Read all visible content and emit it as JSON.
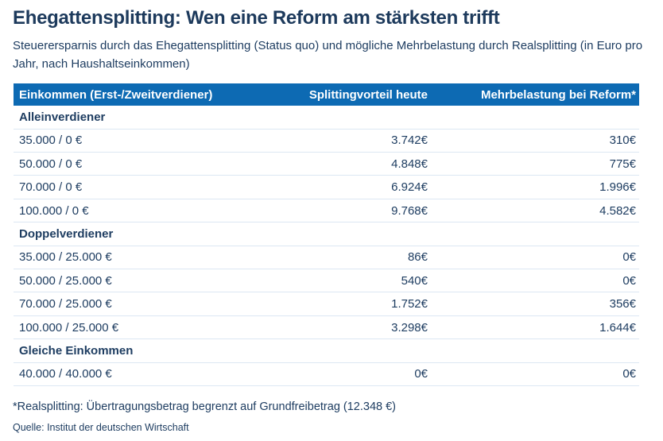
{
  "colors": {
    "accent_blue": "#0d6ab3",
    "navy_text": "#1e3d61",
    "title_navy": "#1d3a5c",
    "row_divider": "#dce7f3",
    "header_text": "#ffffff",
    "background": "#ffffff"
  },
  "header": {
    "title": "Ehegattensplitting: Wen eine Reform am stärksten trifft",
    "subtitle": "Steuerersparnis durch das Ehegattensplitting (Status quo) und mögliche Mehrbelastung durch Realsplitting (in Euro pro Jahr, nach Haushaltseinkommen)"
  },
  "table": {
    "columns": [
      "Einkommen (Erst-/Zweitverdiener)",
      "Splittingvorteil heute",
      "Mehrbelastung bei Reform*"
    ],
    "sections": [
      {
        "name": "Alleinverdiener",
        "rows": [
          {
            "income": "35.000 / 0 €",
            "advantage": "3.742€",
            "burden": "310€"
          },
          {
            "income": "50.000 / 0 €",
            "advantage": "4.848€",
            "burden": "775€"
          },
          {
            "income": "70.000 / 0 €",
            "advantage": "6.924€",
            "burden": "1.996€"
          },
          {
            "income": "100.000 / 0 €",
            "advantage": "9.768€",
            "burden": "4.582€"
          }
        ]
      },
      {
        "name": "Doppelverdiener",
        "rows": [
          {
            "income": "35.000 / 25.000 €",
            "advantage": "86€",
            "burden": "0€"
          },
          {
            "income": "50.000 / 25.000 €",
            "advantage": "540€",
            "burden": "0€"
          },
          {
            "income": "70.000 / 25.000 €",
            "advantage": "1.752€",
            "burden": "356€"
          },
          {
            "income": "100.000 / 25.000 €",
            "advantage": "3.298€",
            "burden": "1.644€"
          }
        ]
      },
      {
        "name": "Gleiche Einkommen",
        "rows": [
          {
            "income": "40.000 / 40.000 €",
            "advantage": "0€",
            "burden": "0€"
          }
        ]
      }
    ]
  },
  "footnote": "*Realsplitting: Übertragungsbetrag begrenzt auf Grundfreibetrag (12.348 €)",
  "source": "Quelle: Institut der deutschen Wirtschaft",
  "chart_data": {
    "type": "table",
    "title": "Ehegattensplitting: Wen eine Reform am stärksten trifft",
    "subtitle": "Steuerersparnis durch das Ehegattensplitting (Status quo) und mögliche Mehrbelastung durch Realsplitting (in Euro pro Jahr, nach Haushaltseinkommen)",
    "columns": [
      "Einkommen (Erst-/Zweitverdiener)",
      "Splittingvorteil heute (€)",
      "Mehrbelastung bei Reform (€)"
    ],
    "sections": [
      {
        "name": "Alleinverdiener",
        "rows": [
          [
            "35.000 / 0 €",
            3742,
            310
          ],
          [
            "50.000 / 0 €",
            4848,
            775
          ],
          [
            "70.000 / 0 €",
            6924,
            1996
          ],
          [
            "100.000 / 0 €",
            9768,
            4582
          ]
        ]
      },
      {
        "name": "Doppelverdiener",
        "rows": [
          [
            "35.000 / 25.000 €",
            86,
            0
          ],
          [
            "50.000 / 25.000 €",
            540,
            0
          ],
          [
            "70.000 / 25.000 €",
            1752,
            356
          ],
          [
            "100.000 / 25.000 €",
            3298,
            1644
          ]
        ]
      },
      {
        "name": "Gleiche Einkommen",
        "rows": [
          [
            "40.000 / 40.000 €",
            0,
            0
          ]
        ]
      }
    ],
    "footnote": "*Realsplitting: Übertragungsbetrag begrenzt auf Grundfreibetrag (12.348 €)",
    "source": "Quelle: Institut der deutschen Wirtschaft"
  }
}
